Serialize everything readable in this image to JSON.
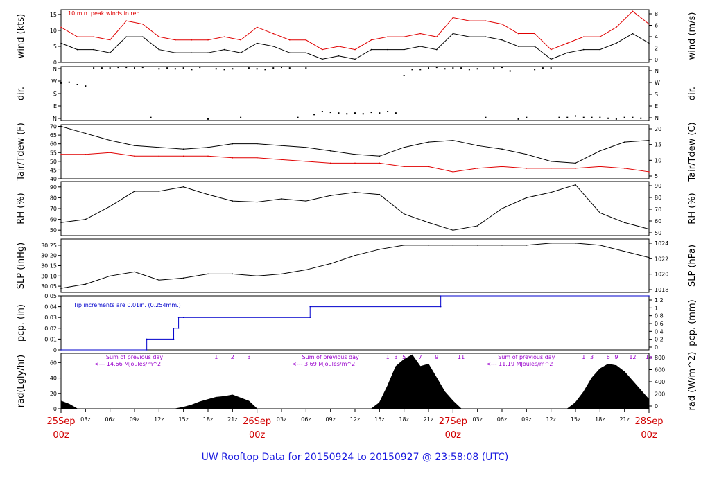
{
  "title": "UW Rooftop Data for 20150924  to  20150927 @ 23:58:08  (UTC)",
  "colors": {
    "black": "#000000",
    "red": "#e00000",
    "blue": "#0000cc",
    "purple": "#9900cc",
    "date": "#d00000",
    "title": "#1a1adf"
  },
  "x_axis": {
    "hours_total": 72,
    "hour_ticks": [
      "03z",
      "06z",
      "09z",
      "12z",
      "15z",
      "18z",
      "21z",
      "03z",
      "06z",
      "09z",
      "12z",
      "15z",
      "18z",
      "21z",
      "03z",
      "06z",
      "09z",
      "12z",
      "15z",
      "18z",
      "21z"
    ],
    "hour_tick_positions": [
      3,
      6,
      9,
      12,
      15,
      18,
      21,
      27,
      30,
      33,
      36,
      39,
      42,
      45,
      51,
      54,
      57,
      60,
      63,
      66,
      69
    ],
    "date_labels": [
      {
        "hour": 0,
        "date": "25Sep",
        "time": "00z"
      },
      {
        "hour": 24,
        "date": "26Sep",
        "time": "00z"
      },
      {
        "hour": 48,
        "date": "27Sep",
        "time": "00z"
      },
      {
        "hour": 72,
        "date": "28Sep",
        "time": "00z"
      }
    ]
  },
  "chart_data": [
    {
      "type": "line",
      "panel": "wind",
      "left_label": "wind (kts)",
      "right_label": "wind (m/s)",
      "left_ticks": [
        "0",
        "5",
        "10",
        "15"
      ],
      "left_range": [
        0,
        16.5
      ],
      "right_ticks": [
        "0",
        "2",
        "4",
        "6",
        "8"
      ],
      "annotation": "10 min. peak winds in red",
      "series": [
        {
          "color": "#000000",
          "x": [
            0,
            2,
            4,
            6,
            8,
            10,
            12,
            14,
            16,
            18,
            20,
            22,
            24,
            26,
            28,
            30,
            32,
            34,
            36,
            38,
            40,
            42,
            44,
            46,
            48,
            50,
            52,
            54,
            56,
            58,
            60,
            62,
            64,
            66,
            68,
            70,
            72
          ],
          "y": [
            6,
            4,
            4,
            3,
            8,
            8,
            4,
            3,
            3,
            3,
            4,
            3,
            6,
            5,
            3,
            3,
            1,
            2,
            1,
            4,
            4,
            4,
            5,
            4,
            9,
            8,
            8,
            7,
            5,
            5,
            1,
            3,
            4,
            4,
            6,
            9,
            6
          ]
        },
        {
          "color": "#e00000",
          "x": [
            0,
            2,
            4,
            6,
            8,
            10,
            12,
            14,
            16,
            18,
            20,
            22,
            24,
            26,
            28,
            30,
            32,
            34,
            36,
            38,
            40,
            42,
            44,
            46,
            48,
            50,
            52,
            54,
            56,
            58,
            60,
            62,
            64,
            66,
            68,
            70,
            72
          ],
          "y": [
            11,
            8,
            8,
            7,
            13,
            12,
            8,
            7,
            7,
            7,
            8,
            7,
            11,
            9,
            7,
            7,
            4,
            5,
            4,
            7,
            8,
            8,
            9,
            8,
            14,
            13,
            13,
            12,
            9,
            9,
            4,
            6,
            8,
            8,
            11,
            16,
            12
          ]
        }
      ]
    },
    {
      "type": "scatter",
      "panel": "dir",
      "left_label": "dir.",
      "right_label": "dir.",
      "left_ticks": [
        "N",
        "E",
        "S",
        "W",
        "N"
      ],
      "right_ticks": [
        "N",
        "E",
        "S",
        "W",
        "N"
      ],
      "left_range": [
        0,
        360
      ],
      "series": [
        {
          "color": "#000000",
          "x": [
            0,
            1,
            2,
            3,
            4,
            5,
            6,
            7,
            8,
            9,
            10,
            11,
            12,
            13,
            14,
            15,
            16,
            17,
            18,
            19,
            20,
            21,
            22,
            23,
            24,
            25,
            26,
            27,
            28,
            29,
            30,
            31,
            32,
            33,
            34,
            35,
            36,
            37,
            38,
            39,
            40,
            41,
            42,
            43,
            44,
            45,
            46,
            47,
            48,
            49,
            50,
            51,
            52,
            53,
            54,
            55,
            56,
            57,
            58,
            59,
            60,
            61,
            62,
            63,
            64,
            65,
            66,
            67,
            68,
            69,
            70,
            71
          ],
          "y": [
            250,
            255,
            240,
            230,
            350,
            350,
            350,
            355,
            355,
            350,
            355,
            20,
            345,
            350,
            345,
            350,
            340,
            355,
            10,
            345,
            340,
            345,
            20,
            350,
            345,
            340,
            350,
            355,
            350,
            20,
            350,
            40,
            60,
            55,
            50,
            45,
            50,
            45,
            55,
            50,
            60,
            50,
            300,
            340,
            340,
            350,
            355,
            345,
            350,
            350,
            340,
            345,
            20,
            350,
            355,
            330,
            10,
            20,
            340,
            350,
            350,
            20,
            20,
            30,
            20,
            20,
            20,
            15,
            10,
            20,
            20,
            15
          ]
        }
      ]
    },
    {
      "type": "line",
      "panel": "temp",
      "left_label": "Tair/Tdew (F)",
      "right_label": "Tair/Tdew (C)",
      "left_ticks": [
        "40",
        "45",
        "50",
        "55",
        "60",
        "65",
        "70"
      ],
      "left_range": [
        40,
        71
      ],
      "right_ticks": [
        "5",
        "10",
        "15",
        "20"
      ],
      "series": [
        {
          "color": "#000000",
          "x": [
            0,
            3,
            6,
            9,
            12,
            15,
            18,
            21,
            24,
            27,
            30,
            33,
            36,
            39,
            42,
            45,
            48,
            51,
            54,
            57,
            60,
            63,
            66,
            69,
            72
          ],
          "y": [
            70,
            66,
            62,
            59,
            58,
            57,
            58,
            60,
            60,
            59,
            58,
            56,
            54,
            53,
            58,
            61,
            62,
            59,
            57,
            54,
            50,
            49,
            56,
            61,
            62
          ]
        },
        {
          "color": "#e00000",
          "x": [
            0,
            3,
            6,
            9,
            12,
            15,
            18,
            21,
            24,
            27,
            30,
            33,
            36,
            39,
            42,
            45,
            48,
            51,
            54,
            57,
            60,
            63,
            66,
            69,
            72
          ],
          "y": [
            54,
            54,
            55,
            53,
            53,
            53,
            53,
            52,
            52,
            51,
            50,
            49,
            49,
            49,
            47,
            47,
            44,
            46,
            47,
            46,
            46,
            46,
            47,
            46,
            44
          ]
        }
      ]
    },
    {
      "type": "line",
      "panel": "rh",
      "left_label": "RH (%)",
      "right_label": "RH (%)",
      "left_ticks": [
        "50",
        "60",
        "70",
        "80",
        "90"
      ],
      "left_range": [
        45,
        95
      ],
      "right_ticks": [
        "50",
        "60",
        "70",
        "80",
        "90"
      ],
      "series": [
        {
          "color": "#000000",
          "x": [
            0,
            3,
            6,
            9,
            12,
            15,
            18,
            21,
            24,
            27,
            30,
            33,
            36,
            39,
            42,
            45,
            48,
            51,
            54,
            57,
            60,
            63,
            66,
            69,
            72
          ],
          "y": [
            57,
            60,
            72,
            86,
            86,
            90,
            83,
            77,
            76,
            79,
            77,
            82,
            85,
            83,
            65,
            57,
            50,
            54,
            70,
            80,
            85,
            92,
            66,
            57,
            51
          ]
        }
      ]
    },
    {
      "type": "line",
      "panel": "slp",
      "left_label": "SLP (inHg)",
      "right_label": "SLP (hPa)",
      "left_ticks": [
        "30.05",
        "30.10",
        "30.15",
        "30.20",
        "30.25"
      ],
      "left_range": [
        30.02,
        30.28
      ],
      "right_ticks": [
        "1018",
        "1020",
        "1022",
        "1024"
      ],
      "series": [
        {
          "color": "#000000",
          "x": [
            0,
            3,
            6,
            9,
            12,
            15,
            18,
            21,
            24,
            27,
            30,
            33,
            36,
            39,
            42,
            45,
            48,
            51,
            54,
            57,
            60,
            63,
            66,
            69,
            72
          ],
          "y": [
            30.04,
            30.06,
            30.1,
            30.12,
            30.08,
            30.09,
            30.11,
            30.11,
            30.1,
            30.11,
            30.13,
            30.16,
            30.2,
            30.23,
            30.25,
            30.25,
            30.25,
            30.25,
            30.25,
            30.25,
            30.26,
            30.26,
            30.25,
            30.22,
            30.19
          ]
        }
      ]
    },
    {
      "type": "line",
      "panel": "pcp",
      "left_label": "pcp. (in)",
      "right_label": "pcp. (mm)",
      "left_ticks": [
        "0",
        "0.01",
        "0.02",
        "0.03",
        "0.04",
        "0.05"
      ],
      "left_range": [
        0,
        0.05
      ],
      "right_ticks": [
        "0",
        "0.2",
        "0.4",
        "0.6",
        "0.8",
        "1",
        "1.2"
      ],
      "annotation": "Tip increments are 0.01in. (0.254mm.)",
      "series": [
        {
          "color": "#0000cc",
          "x": [
            0,
            10.5,
            10.5,
            13.8,
            13.8,
            14.4,
            14.4,
            15,
            15,
            30.5,
            30.5,
            46.5,
            46.5,
            72
          ],
          "y": [
            0,
            0,
            0.01,
            0.01,
            0.02,
            0.02,
            0.03,
            0.03,
            0.03,
            0.03,
            0.04,
            0.04,
            0.05,
            0.05
          ]
        }
      ]
    },
    {
      "type": "area",
      "panel": "rad",
      "left_label": "rad(Lgly/hr)",
      "right_label": "rad (W/m^2)",
      "left_ticks": [
        "0",
        "20",
        "40",
        "60"
      ],
      "left_range": [
        0,
        72
      ],
      "right_ticks": [
        "0",
        "200",
        "400",
        "600",
        "800"
      ],
      "annotations": [
        {
          "hour": 9,
          "text": "Sum of previous day"
        },
        {
          "hour": 9,
          "text": "<--- 14.66 MJoules/m^2"
        },
        {
          "hour": 33,
          "text": "Sum of previous day"
        },
        {
          "hour": 33,
          "text": "<--- 3.69 MJoules/m^2"
        },
        {
          "hour": 57,
          "text": "Sum of previous day"
        },
        {
          "hour": 57,
          "text": "<--- 11.19 MJoules/m^2"
        }
      ],
      "hour_markers": [
        {
          "hour": 19,
          "label": "1"
        },
        {
          "hour": 21,
          "label": "2"
        },
        {
          "hour": 23,
          "label": "3"
        },
        {
          "hour": 40,
          "label": "1"
        },
        {
          "hour": 41,
          "label": "3"
        },
        {
          "hour": 42,
          "label": "5"
        },
        {
          "hour": 44,
          "label": "7"
        },
        {
          "hour": 46,
          "label": "9"
        },
        {
          "hour": 49,
          "label": "11"
        },
        {
          "hour": 64,
          "label": "1"
        },
        {
          "hour": 65,
          "label": "3"
        },
        {
          "hour": 67,
          "label": "6"
        },
        {
          "hour": 68,
          "label": "9"
        },
        {
          "hour": 70,
          "label": "12"
        },
        {
          "hour": 72,
          "label": "15"
        }
      ],
      "series": [
        {
          "color": "#000000",
          "x": [
            0,
            1,
            2,
            14,
            15,
            16,
            17,
            18,
            19,
            20,
            21,
            22,
            23,
            24,
            38,
            39,
            40,
            41,
            42,
            43,
            44,
            45,
            46,
            47,
            48,
            49,
            50,
            62,
            63,
            64,
            65,
            66,
            67,
            68,
            69,
            70,
            71,
            72
          ],
          "y": [
            10,
            6,
            0,
            0,
            2,
            5,
            9,
            12,
            15,
            16,
            18,
            14,
            10,
            0,
            0,
            8,
            30,
            55,
            64,
            70,
            55,
            58,
            40,
            22,
            10,
            0,
            0,
            0,
            8,
            22,
            40,
            52,
            58,
            56,
            48,
            36,
            24,
            12
          ]
        }
      ]
    }
  ]
}
